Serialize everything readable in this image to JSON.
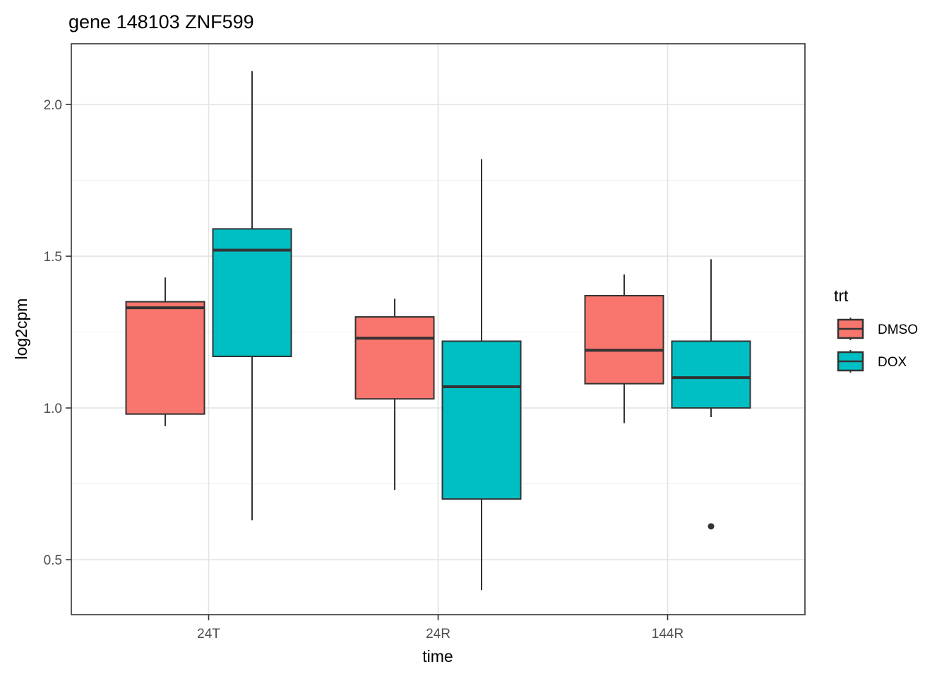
{
  "title": "gene 148103 ZNF599",
  "chart_data": {
    "type": "boxplot",
    "title": "gene 148103 ZNF599",
    "xlabel": "time",
    "ylabel": "log2cpm",
    "categories": [
      "24T",
      "24R",
      "144R"
    ],
    "y_ticks": [
      0.5,
      1.0,
      1.5,
      2.0
    ],
    "y_tick_labels": [
      "0.5",
      "1.0",
      "1.5",
      "2.0"
    ],
    "y_minor_gridlines": [
      0.75,
      1.25,
      1.75
    ],
    "ylim": [
      0.319,
      2.2
    ],
    "grid": "on",
    "legend": {
      "title": "trt",
      "position": "right",
      "entries": [
        {
          "label": "DMSO",
          "color": "#F8766D"
        },
        {
          "label": "DOX",
          "color": "#00BFC4"
        }
      ]
    },
    "series": [
      {
        "name": "DMSO",
        "color": "#F8766D",
        "boxes": [
          {
            "category": "24T",
            "whisker_low": 0.94,
            "q1": 0.98,
            "median": 1.33,
            "q3": 1.35,
            "whisker_high": 1.43,
            "outliers": []
          },
          {
            "category": "24R",
            "whisker_low": 0.73,
            "q1": 1.03,
            "median": 1.23,
            "q3": 1.3,
            "whisker_high": 1.36,
            "outliers": []
          },
          {
            "category": "144R",
            "whisker_low": 0.95,
            "q1": 1.08,
            "median": 1.19,
            "q3": 1.37,
            "whisker_high": 1.44,
            "outliers": []
          }
        ]
      },
      {
        "name": "DOX",
        "color": "#00BFC4",
        "boxes": [
          {
            "category": "24T",
            "whisker_low": 0.63,
            "q1": 1.17,
            "median": 1.52,
            "q3": 1.59,
            "whisker_high": 2.11,
            "outliers": []
          },
          {
            "category": "24R",
            "whisker_low": 0.4,
            "q1": 0.7,
            "median": 1.07,
            "q3": 1.22,
            "whisker_high": 1.82,
            "outliers": []
          },
          {
            "category": "144R",
            "whisker_low": 0.97,
            "q1": 1.0,
            "median": 1.1,
            "q3": 1.22,
            "whisker_high": 1.49,
            "outliers": [
              0.61
            ]
          }
        ]
      }
    ],
    "style": {
      "box_stroke": "#333333",
      "median_color": "#333333",
      "outlier_color": "#333333",
      "panel_border": "#333333",
      "major_grid": "#e3e3e3",
      "minor_grid": "#f0f0f0",
      "tick_label_color": "#4d4d4d"
    }
  }
}
